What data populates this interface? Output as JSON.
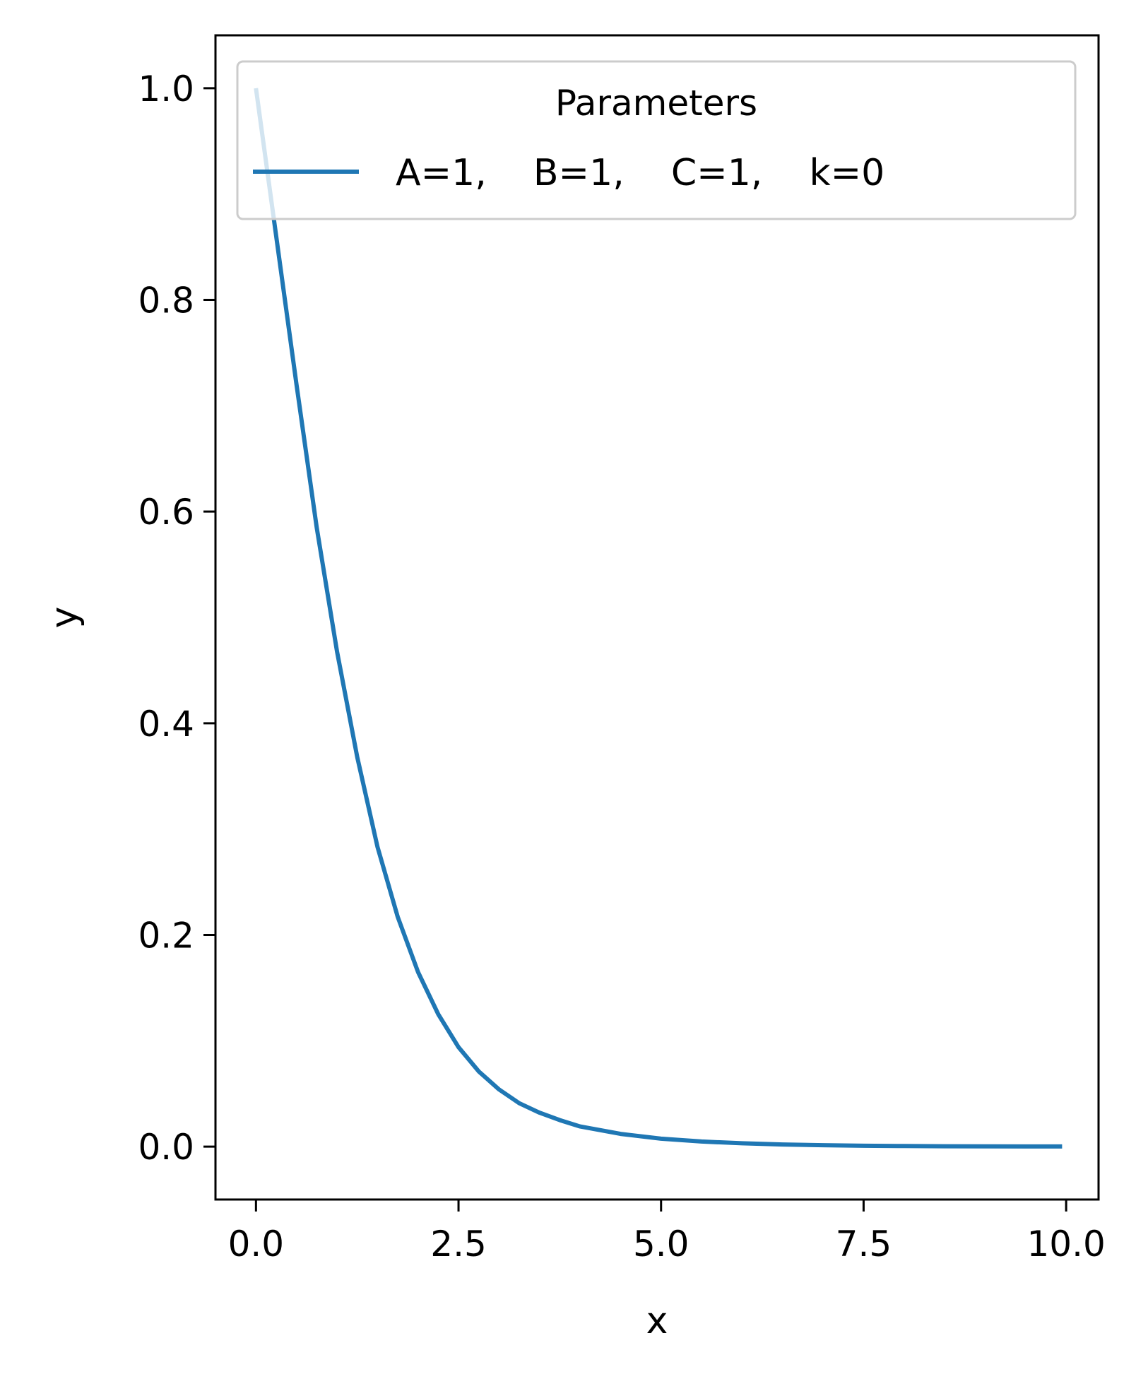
{
  "chart_data": {
    "type": "line",
    "title": "",
    "xlabel": "x",
    "ylabel": "y",
    "xlim": [
      -0.5,
      10.4
    ],
    "ylim": [
      -0.05,
      1.05
    ],
    "x_ticks": [
      0.0,
      2.5,
      5.0,
      7.5,
      10.0
    ],
    "x_tick_labels": [
      "0.0",
      "2.5",
      "5.0",
      "7.5",
      "10.0"
    ],
    "y_ticks": [
      0.0,
      0.2,
      0.4,
      0.6,
      0.8,
      1.0
    ],
    "y_tick_labels": [
      "0.0",
      "0.2",
      "0.4",
      "0.6",
      "0.8",
      "1.0"
    ],
    "grid": false,
    "legend": {
      "title": "Parameters",
      "placement": "top-center"
    },
    "series": [
      {
        "name": "A=1,    B=1,    C=1,    k=0",
        "color": "#1f77b4",
        "x": [
          0.0,
          0.25,
          0.5,
          0.75,
          1.0,
          1.25,
          1.5,
          1.75,
          2.0,
          2.25,
          2.5,
          2.75,
          3.0,
          3.25,
          3.5,
          3.75,
          4.0,
          4.5,
          5.0,
          5.5,
          6.0,
          6.5,
          7.0,
          7.5,
          8.0,
          8.5,
          9.0,
          9.5,
          9.95
        ],
        "y": [
          1.0,
          0.86,
          0.72,
          0.585,
          0.468,
          0.368,
          0.283,
          0.217,
          0.165,
          0.125,
          0.094,
          0.071,
          0.054,
          0.041,
          0.032,
          0.025,
          0.019,
          0.012,
          0.0075,
          0.0048,
          0.0031,
          0.002,
          0.0013,
          0.0008,
          0.0005,
          0.0003,
          0.0002,
          0.0001,
          0.0001
        ]
      }
    ]
  }
}
